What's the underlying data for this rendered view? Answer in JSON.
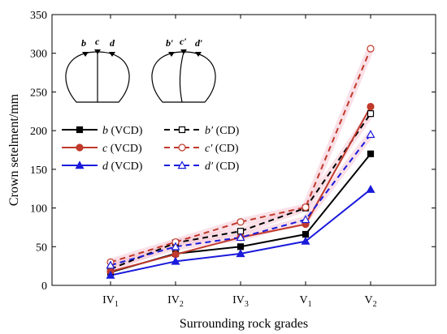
{
  "chart_data": {
    "type": "line",
    "xlabel": "Surrounding rock grades",
    "ylabel": "Crown setelment/mm",
    "categories": [
      {
        "base": "IV",
        "sub": "1"
      },
      {
        "base": "IV",
        "sub": "2"
      },
      {
        "base": "IV",
        "sub": "3"
      },
      {
        "base": "V",
        "sub": "1"
      },
      {
        "base": "V",
        "sub": "2"
      }
    ],
    "ylim": [
      0,
      350
    ],
    "yticks": [
      0,
      50,
      100,
      150,
      200,
      250,
      300,
      350
    ],
    "grid": false,
    "legend_placement": "center-left",
    "series": [
      {
        "id": "b_vcd",
        "point": "b",
        "method": "(VCD)",
        "color": "#000000",
        "dash": false,
        "marker": "square",
        "filled": true,
        "values": [
          17,
          41,
          50,
          66,
          170
        ]
      },
      {
        "id": "b_cd",
        "point": "b′",
        "method": "(CD)",
        "color": "#000000",
        "dash": true,
        "marker": "square",
        "filled": false,
        "values": [
          21,
          55,
          70,
          100,
          222
        ]
      },
      {
        "id": "c_vcd",
        "point": "c",
        "method": "(VCD)",
        "color": "#c0392b",
        "dash": false,
        "marker": "circle",
        "filled": true,
        "values": [
          18,
          40,
          62,
          79,
          231
        ]
      },
      {
        "id": "c_cd",
        "point": "c′",
        "method": "(CD)",
        "color": "#c0392b",
        "dash": true,
        "marker": "circle",
        "filled": false,
        "values": [
          30,
          56,
          82,
          101,
          306
        ]
      },
      {
        "id": "d_vcd",
        "point": "d",
        "method": "(VCD)",
        "color": "#1a1adb",
        "dash": false,
        "marker": "triangle",
        "filled": true,
        "values": [
          13,
          31,
          41,
          57,
          124
        ]
      },
      {
        "id": "d_cd",
        "point": "d′",
        "method": "(CD)",
        "color": "#1a1adb",
        "dash": true,
        "marker": "triangle",
        "filled": false,
        "values": [
          26,
          50,
          62,
          85,
          195
        ]
      }
    ],
    "insets": {
      "vcd_labels": [
        "b",
        "c",
        "d"
      ],
      "cd_labels": [
        "b′",
        "c′",
        "d′"
      ]
    }
  }
}
